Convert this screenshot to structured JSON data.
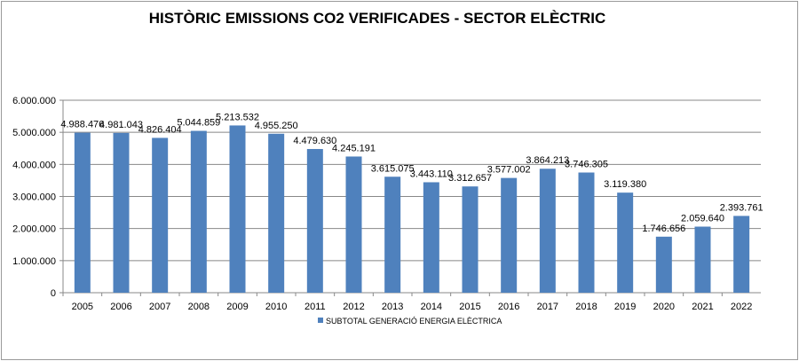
{
  "chart_data": {
    "type": "bar",
    "title": "HISTÒRIC EMISSIONS CO2 VERIFICADES - SECTOR ELÈCTRIC",
    "xlabel": "",
    "ylabel": "",
    "categories": [
      "2005",
      "2006",
      "2007",
      "2008",
      "2009",
      "2010",
      "2011",
      "2012",
      "2013",
      "2014",
      "2015",
      "2016",
      "2017",
      "2018",
      "2019",
      "2020",
      "2021",
      "2022"
    ],
    "series": [
      {
        "name": "SUBTOTAL GENERACIÓ ENERGIA ELÈCTRICA",
        "color": "#4f81bd",
        "values": [
          4988476,
          4981043,
          4826404,
          5044859,
          5213532,
          4955250,
          4479630,
          4245191,
          3615075,
          3443110,
          3312657,
          3577002,
          3864213,
          3746305,
          3119380,
          1746656,
          2059640,
          2393761
        ],
        "labels": [
          "4.988.476",
          "4.981.043",
          "4.826.404",
          "5.044.859",
          "5.213.532",
          "4.955.250",
          "4.479.630",
          "4.245.191",
          "3.615.075",
          "3.443.110",
          "3.312.657",
          "3.577.002",
          "3.864.213",
          "3.746.305",
          "3.119.380",
          "1.746.656",
          "2.059.640",
          "2.393.761"
        ]
      }
    ],
    "ylim": [
      0,
      6000000
    ],
    "yticks": [
      0,
      1000000,
      2000000,
      3000000,
      4000000,
      5000000,
      6000000
    ],
    "ytick_labels": [
      "0",
      "1.000.000",
      "2.000.000",
      "3.000.000",
      "4.000.000",
      "5.000.000",
      "6.000.000"
    ],
    "grid": true,
    "legend": "bottom"
  }
}
